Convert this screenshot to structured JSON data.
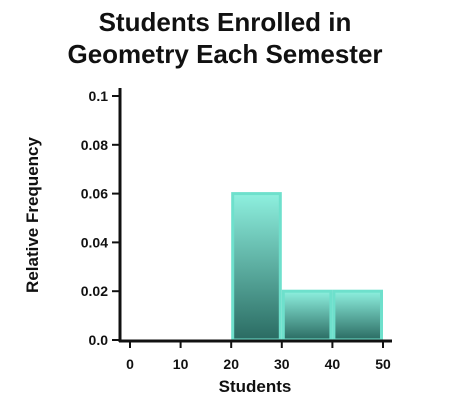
{
  "chart_data": {
    "type": "bar",
    "title_line1": "Students Enrolled in",
    "title_line2": "Geometry Each Semester",
    "xlabel": "Students",
    "ylabel": "Relative Frequency",
    "xlim": [
      0,
      50
    ],
    "ylim": [
      0,
      0.1
    ],
    "x_ticks": [
      "0",
      "10",
      "20",
      "30",
      "40",
      "50"
    ],
    "y_ticks": [
      "0.0",
      "0.02",
      "0.04",
      "0.06",
      "0.08",
      "0.1"
    ],
    "bins": [
      {
        "start": 0,
        "end": 10,
        "value": 0
      },
      {
        "start": 10,
        "end": 20,
        "value": 0
      },
      {
        "start": 20,
        "end": 30,
        "value": 0.06
      },
      {
        "start": 30,
        "end": 40,
        "value": 0.02
      },
      {
        "start": 40,
        "end": 50,
        "value": 0.02
      }
    ],
    "bar_color_top": "#8ef0df",
    "bar_color_bottom": "#2a6b62",
    "bar_stroke": "#6ee0cc",
    "grid": false
  }
}
